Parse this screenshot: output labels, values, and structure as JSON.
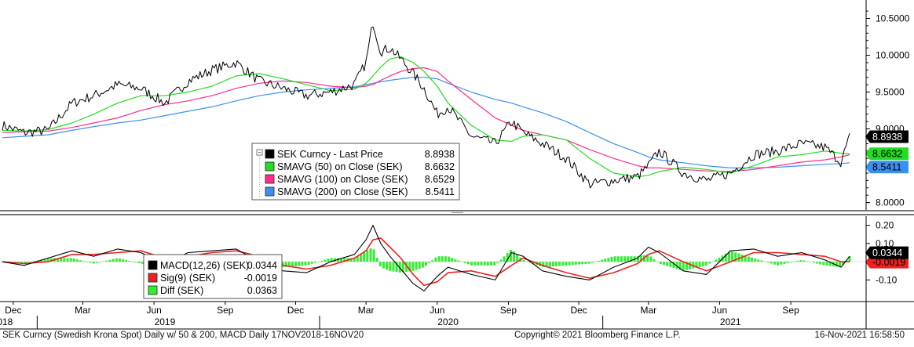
{
  "footer": {
    "left": "SEK Curncy (Swedish Krona Spot) Daily w/ 50 & 200, MACD  Daily 17NOV2018-16NOV20",
    "copyright": "Copyright© 2021 Bloomberg Finance L.P.",
    "timestamp": "16-Nov-2021 16:58:50"
  },
  "colors": {
    "price": "#000000",
    "sma50": "#22dd22",
    "sma100": "#ff2d8c",
    "sma200": "#3d8fef",
    "macd": "#000000",
    "signal": "#ee2020",
    "diff": "#33ee33",
    "current_label_bg": "#000000"
  },
  "chart_data": [
    {
      "type": "line",
      "panel": "price",
      "legend": [
        {
          "label": "SEK Curncy - Last Price",
          "value": "8.8938",
          "color": "#000000"
        },
        {
          "label": "SMAVG (50)  on Close (SEK)",
          "value": "8.6632",
          "color": "#22dd22"
        },
        {
          "label": "SMAVG (100)  on Close (SEK)",
          "value": "8.6529",
          "color": "#ff2d8c"
        },
        {
          "label": "SMAVG (200)  on Close (SEK)",
          "value": "8.5411",
          "color": "#3d8fef"
        }
      ],
      "y_ticks": [
        "10.5000",
        "10.0000",
        "9.5000",
        "9.0000",
        "8.0000"
      ],
      "ylim": [
        7.9,
        10.75
      ],
      "current_labels": [
        {
          "value": "8.8938",
          "style": "dark"
        },
        {
          "value": "8.6632",
          "style": "green"
        },
        {
          "value": "8.5411",
          "style": "blue"
        }
      ],
      "x": [
        "2018-11-17",
        "2018-12-15",
        "2019-01-15",
        "2019-02-15",
        "2019-03-15",
        "2019-04-15",
        "2019-05-15",
        "2019-06-15",
        "2019-07-15",
        "2019-08-15",
        "2019-09-15",
        "2019-10-15",
        "2019-11-15",
        "2019-12-15",
        "2020-01-15",
        "2020-02-15",
        "2020-03-01",
        "2020-03-10",
        "2020-03-20",
        "2020-04-01",
        "2020-04-15",
        "2020-05-01",
        "2020-05-15",
        "2020-06-01",
        "2020-06-15",
        "2020-07-15",
        "2020-08-15",
        "2020-09-05",
        "2020-09-20",
        "2020-10-15",
        "2020-11-15",
        "2020-12-15",
        "2021-01-15",
        "2021-02-15",
        "2021-03-01",
        "2021-03-15",
        "2021-04-15",
        "2021-05-15",
        "2021-06-15",
        "2021-07-15",
        "2021-08-15",
        "2021-09-15",
        "2021-10-15",
        "2021-11-05",
        "2021-11-16"
      ],
      "series": [
        {
          "name": "SEK Curncy - Last Price",
          "values": [
            9.05,
            8.95,
            8.98,
            9.35,
            9.45,
            9.6,
            9.55,
            9.35,
            9.65,
            9.8,
            9.9,
            9.65,
            9.55,
            9.45,
            9.5,
            9.6,
            9.9,
            10.45,
            10.05,
            10.1,
            9.95,
            9.75,
            9.55,
            9.2,
            9.3,
            8.9,
            8.8,
            9.1,
            8.95,
            8.8,
            8.6,
            8.25,
            8.3,
            8.35,
            8.5,
            8.7,
            8.4,
            8.3,
            8.4,
            8.65,
            8.7,
            8.8,
            8.75,
            8.55,
            8.89
          ]
        },
        {
          "name": "SMAVG (50)  on Close (SEK)",
          "values": [
            8.98,
            8.97,
            8.99,
            9.08,
            9.2,
            9.35,
            9.45,
            9.45,
            9.5,
            9.58,
            9.72,
            9.75,
            9.68,
            9.6,
            9.52,
            9.54,
            9.62,
            9.72,
            9.84,
            9.95,
            9.98,
            9.9,
            9.78,
            9.58,
            9.35,
            9.05,
            8.85,
            8.83,
            8.9,
            8.92,
            8.85,
            8.6,
            8.4,
            8.35,
            8.37,
            8.42,
            8.48,
            8.45,
            8.4,
            8.5,
            8.62,
            8.65,
            8.7,
            8.67,
            8.66
          ]
        },
        {
          "name": "SMAVG (100)  on Close (SEK)",
          "values": [
            8.95,
            8.96,
            8.97,
            9.02,
            9.08,
            9.15,
            9.25,
            9.33,
            9.38,
            9.45,
            9.55,
            9.62,
            9.65,
            9.63,
            9.58,
            9.56,
            9.58,
            9.6,
            9.66,
            9.72,
            9.78,
            9.82,
            9.83,
            9.78,
            9.65,
            9.4,
            9.15,
            9.05,
            8.98,
            8.92,
            8.85,
            8.72,
            8.6,
            8.5,
            8.47,
            8.47,
            8.45,
            8.43,
            8.42,
            8.45,
            8.5,
            8.55,
            8.58,
            8.62,
            8.65
          ]
        },
        {
          "name": "SMAVG (200)  on Close (SEK)",
          "values": [
            8.88,
            8.9,
            8.92,
            8.98,
            9.03,
            9.08,
            9.12,
            9.18,
            9.24,
            9.3,
            9.38,
            9.45,
            9.5,
            9.53,
            9.55,
            9.57,
            9.6,
            9.62,
            9.64,
            9.66,
            9.68,
            9.7,
            9.7,
            9.68,
            9.62,
            9.5,
            9.4,
            9.35,
            9.3,
            9.22,
            9.1,
            8.95,
            8.8,
            8.68,
            8.62,
            8.58,
            8.54,
            8.5,
            8.47,
            8.47,
            8.48,
            8.5,
            8.52,
            8.53,
            8.54
          ]
        }
      ]
    },
    {
      "type": "line",
      "panel": "macd",
      "legend": [
        {
          "label": "MACD(12,26) (SEK)",
          "value": "0.0344",
          "color": "#000000"
        },
        {
          "label": "Sig(9) (SEK)",
          "value": "-0.0019",
          "color": "#ee2020"
        },
        {
          "label": "Diff (SEK)",
          "value": "0.0363",
          "color": "#33ee33"
        }
      ],
      "y_ticks": [
        "0.20",
        "0.10",
        "-0.10"
      ],
      "ylim": [
        -0.21,
        0.25
      ],
      "current_labels": [
        {
          "value": "0.0344",
          "style": "dark"
        },
        {
          "value": "-0.0019",
          "style": "red"
        }
      ],
      "x": [
        "2018-11-17",
        "2018-12-15",
        "2019-01-15",
        "2019-02-15",
        "2019-03-15",
        "2019-04-15",
        "2019-05-15",
        "2019-06-15",
        "2019-07-15",
        "2019-08-15",
        "2019-09-15",
        "2019-10-15",
        "2019-11-15",
        "2019-12-15",
        "2020-01-15",
        "2020-02-15",
        "2020-03-01",
        "2020-03-10",
        "2020-03-20",
        "2020-04-01",
        "2020-04-15",
        "2020-05-01",
        "2020-05-15",
        "2020-06-01",
        "2020-06-15",
        "2020-07-15",
        "2020-08-15",
        "2020-09-05",
        "2020-09-20",
        "2020-10-15",
        "2020-11-15",
        "2020-12-15",
        "2021-01-15",
        "2021-02-15",
        "2021-03-01",
        "2021-03-15",
        "2021-04-15",
        "2021-05-15",
        "2021-06-15",
        "2021-07-15",
        "2021-08-15",
        "2021-09-15",
        "2021-10-15",
        "2021-11-05",
        "2021-11-16"
      ],
      "series": [
        {
          "name": "MACD(12,26) (SEK)",
          "values": [
            0.0,
            -0.02,
            0.02,
            0.06,
            0.03,
            0.07,
            0.05,
            -0.01,
            0.05,
            0.06,
            0.07,
            0.0,
            -0.05,
            -0.06,
            0.0,
            0.04,
            0.12,
            0.2,
            0.1,
            0.03,
            -0.04,
            -0.12,
            -0.16,
            -0.08,
            -0.03,
            -0.07,
            -0.1,
            0.05,
            0.03,
            -0.05,
            -0.08,
            -0.1,
            -0.03,
            0.02,
            0.08,
            0.05,
            -0.05,
            -0.07,
            0.06,
            0.07,
            0.03,
            0.05,
            0.01,
            -0.03,
            0.03
          ]
        },
        {
          "name": "Sig(9) (SEK)",
          "values": [
            0.0,
            -0.01,
            0.0,
            0.04,
            0.04,
            0.05,
            0.06,
            0.02,
            0.03,
            0.05,
            0.06,
            0.03,
            -0.02,
            -0.04,
            -0.02,
            0.02,
            0.06,
            0.12,
            0.13,
            0.08,
            0.02,
            -0.07,
            -0.13,
            -0.11,
            -0.06,
            -0.05,
            -0.08,
            -0.02,
            0.02,
            -0.02,
            -0.06,
            -0.09,
            -0.06,
            -0.01,
            0.04,
            0.06,
            0.0,
            -0.05,
            0.0,
            0.05,
            0.05,
            0.04,
            0.03,
            0.0,
            0.0
          ]
        }
      ]
    }
  ],
  "x_axis": {
    "month_ticks": [
      {
        "label": "Dec",
        "date": "2018-12-01"
      },
      {
        "label": "Mar",
        "date": "2019-03-01"
      },
      {
        "label": "Jun",
        "date": "2019-06-01"
      },
      {
        "label": "Sep",
        "date": "2019-09-01"
      },
      {
        "label": "Dec",
        "date": "2019-12-01"
      },
      {
        "label": "Mar",
        "date": "2020-03-01"
      },
      {
        "label": "Jun",
        "date": "2020-06-01"
      },
      {
        "label": "Sep",
        "date": "2020-09-01"
      },
      {
        "label": "Dec",
        "date": "2020-12-01"
      },
      {
        "label": "Mar",
        "date": "2021-03-01"
      },
      {
        "label": "Jun",
        "date": "2021-06-01"
      },
      {
        "label": "Sep",
        "date": "2021-09-01"
      }
    ],
    "year_ticks": [
      {
        "label": "2018",
        "date": "2018-11-17"
      },
      {
        "label": "2019",
        "date": "2019-06-15"
      },
      {
        "label": "2020",
        "date": "2020-06-15"
      },
      {
        "label": "2021",
        "date": "2021-06-15"
      }
    ],
    "range": [
      "2018-11-17",
      "2021-11-16"
    ]
  }
}
